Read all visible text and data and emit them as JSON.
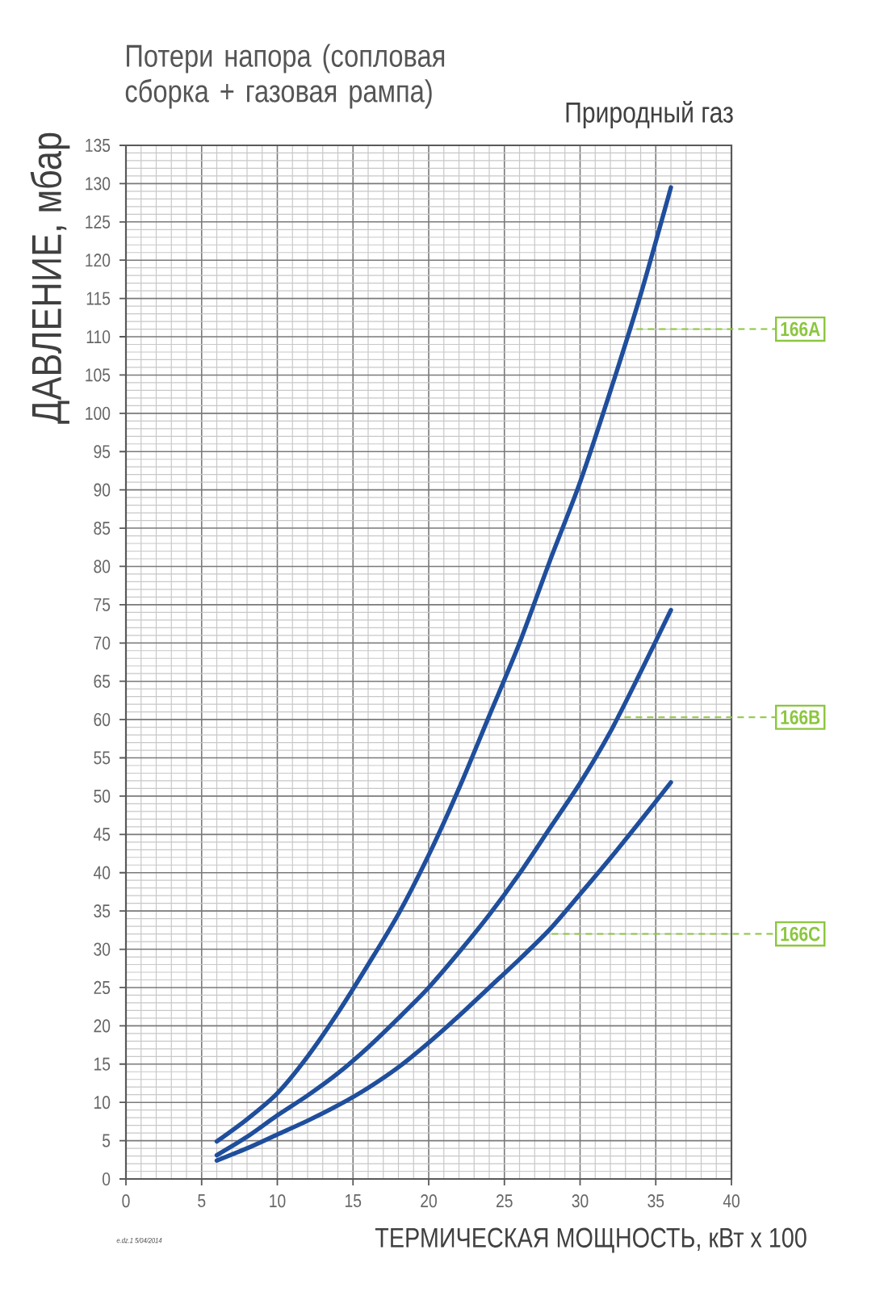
{
  "chart_data": {
    "type": "line",
    "title": "Потери напора (сопловая сборка + газовая рампа)",
    "subtitle": "Природный газ",
    "xlabel": "ТЕРМИЧЕСКАЯ МОЩНОСТЬ, кВт x 100",
    "ylabel": "ДАВЛЕНИЕ, мбар",
    "x": [
      6,
      8,
      10,
      12,
      14,
      16,
      18,
      20,
      22,
      24,
      26,
      28,
      30,
      32,
      34,
      36
    ],
    "series": [
      {
        "color": "#1f4e9c",
        "values": [
          4.9,
          7.8,
          11.2,
          16,
          21.7,
          28,
          34.6,
          42.3,
          51,
          60.5,
          70,
          80.7,
          91,
          102.9,
          115.5,
          129.5
        ]
      },
      {
        "color": "#1f4e9c",
        "values": [
          3.1,
          5.5,
          8.3,
          10.9,
          13.8,
          17.2,
          21,
          25,
          29.6,
          34.5,
          39.9,
          45.8,
          51.7,
          58.4,
          66.2,
          74.3
        ]
      },
      {
        "color": "#1f4e9c",
        "values": [
          2.4,
          4,
          5.8,
          7.6,
          9.6,
          11.9,
          14.6,
          17.8,
          21.3,
          25,
          28.7,
          32.6,
          37.2,
          41.9,
          46.8,
          51.8
        ]
      }
    ],
    "xlim": [
      0,
      40
    ],
    "ylim": [
      0,
      135
    ],
    "xticks": [
      0,
      5,
      10,
      15,
      20,
      25,
      30,
      35,
      40
    ],
    "yticks": [
      0,
      5,
      10,
      15,
      20,
      25,
      30,
      35,
      40,
      45,
      50,
      55,
      60,
      65,
      70,
      75,
      80,
      85,
      90,
      95,
      100,
      105,
      110,
      115,
      120,
      125,
      130,
      135
    ],
    "grid": true,
    "marker": "none",
    "line_style": "solid",
    "annotations": [
      {
        "text": "166A",
        "x": 33.3,
        "y": 111
      },
      {
        "text": "166B",
        "x": 32.5,
        "y": 60.3
      },
      {
        "text": "166C",
        "x": 27.7,
        "y": 32
      },
      "e.dz.1 5/04/2014"
    ]
  }
}
